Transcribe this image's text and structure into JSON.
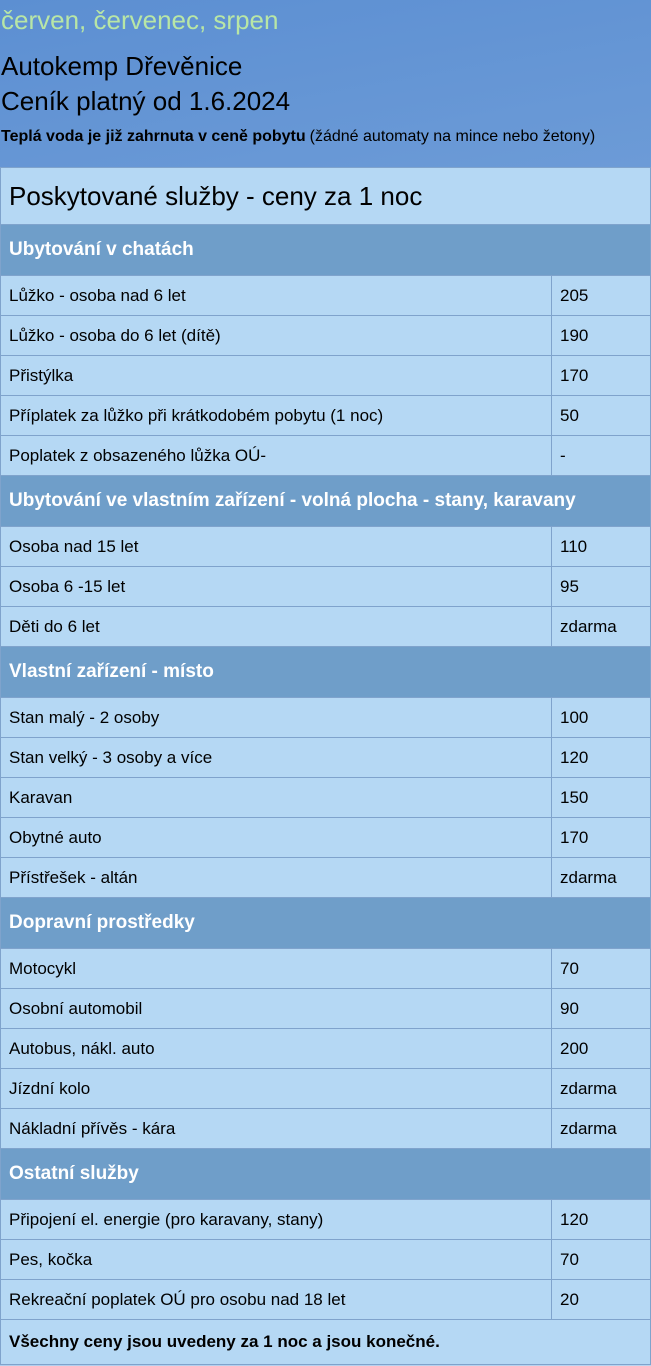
{
  "header": {
    "months": "červen, červenec, srpen",
    "camp": "Autokemp Dřevěnice",
    "validity": "Ceník platný od 1.6.2024"
  },
  "notice": {
    "bold": "Teplá voda je již zahrnuta v ceně pobytu",
    "rest": "(žádné automaty na mince nebo žetony)"
  },
  "table": {
    "title": "Poskytované služby - ceny za 1 noc",
    "sections": [
      {
        "heading": "Ubytování v chatách",
        "rows": [
          [
            "Lůžko - osoba nad 6 let",
            205
          ],
          [
            "Lůžko - osoba do 6 let (dítě)",
            190
          ],
          [
            "Přistýlka",
            170
          ],
          [
            "Příplatek za lůžko při krátkodobém pobytu (1 noc)",
            50
          ],
          [
            "Poplatek z obsazeného lůžka OÚ-",
            "-"
          ]
        ]
      },
      {
        "heading": "Ubytování ve vlastním zařízení - volná plocha - stany, karavany",
        "rows": [
          [
            "Osoba nad 15 let",
            110
          ],
          [
            "Osoba 6 -15 let",
            95
          ],
          [
            "Děti do 6 let",
            "zdarma"
          ]
        ]
      },
      {
        "heading": "Vlastní zařízení - místo",
        "rows": [
          [
            "Stan malý - 2 osoby",
            100
          ],
          [
            "Stan velký - 3 osoby a více",
            120
          ],
          [
            "Karavan",
            150
          ],
          [
            "Obytné auto",
            170
          ],
          [
            "Přístřešek - altán",
            "zdarma"
          ]
        ]
      },
      {
        "heading": "Dopravní prostředky",
        "rows": [
          [
            "Motocykl",
            70
          ],
          [
            "Osobní automobil",
            90
          ],
          [
            "Autobus, nákl. auto",
            200
          ],
          [
            "Jízdní kolo",
            "zdarma"
          ],
          [
            "Nákladní přívěs - kára",
            "zdarma"
          ]
        ]
      },
      {
        "heading": "Ostatní služby",
        "rows": [
          [
            "Připojení el. energie (pro karavany, stany)",
            120
          ],
          [
            "Pes, kočka",
            70
          ],
          [
            "Rekreační poplatek OÚ pro osobu nad 18 let",
            20
          ]
        ]
      }
    ],
    "footer": "Všechny ceny jsou uvedeny za 1 noc a jsou konečné."
  }
}
